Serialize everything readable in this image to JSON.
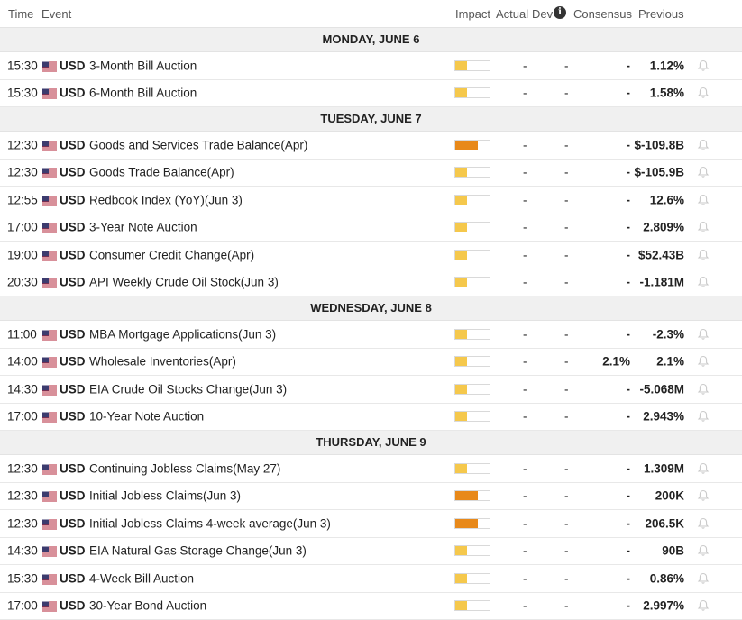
{
  "header": {
    "time": "Time",
    "event": "Event",
    "impact": "Impact",
    "actual": "Actual",
    "dev": "Dev",
    "info_icon": "i",
    "consensus": "Consensus",
    "previous": "Previous"
  },
  "colors": {
    "impact_low": "#f5c84c",
    "impact_high": "#e8891a"
  },
  "days": [
    {
      "label": "MONDAY, JUNE 6",
      "events": [
        {
          "time": "15:30",
          "currency": "USD",
          "name": "3-Month Bill Auction",
          "impact": "low",
          "actual": "-",
          "dev": "-",
          "consensus": "-",
          "previous": "1.12%"
        },
        {
          "time": "15:30",
          "currency": "USD",
          "name": "6-Month Bill Auction",
          "impact": "low",
          "actual": "-",
          "dev": "-",
          "consensus": "-",
          "previous": "1.58%"
        }
      ]
    },
    {
      "label": "TUESDAY, JUNE 7",
      "events": [
        {
          "time": "12:30",
          "currency": "USD",
          "name": "Goods and Services Trade Balance(Apr)",
          "impact": "high",
          "actual": "-",
          "dev": "-",
          "consensus": "-",
          "previous": "$-109.8B"
        },
        {
          "time": "12:30",
          "currency": "USD",
          "name": "Goods Trade Balance(Apr)",
          "impact": "low",
          "actual": "-",
          "dev": "-",
          "consensus": "-",
          "previous": "$-105.9B"
        },
        {
          "time": "12:55",
          "currency": "USD",
          "name": "Redbook Index (YoY)(Jun 3)",
          "impact": "low",
          "actual": "-",
          "dev": "-",
          "consensus": "-",
          "previous": "12.6%"
        },
        {
          "time": "17:00",
          "currency": "USD",
          "name": "3-Year Note Auction",
          "impact": "low",
          "actual": "-",
          "dev": "-",
          "consensus": "-",
          "previous": "2.809%"
        },
        {
          "time": "19:00",
          "currency": "USD",
          "name": "Consumer Credit Change(Apr)",
          "impact": "low",
          "actual": "-",
          "dev": "-",
          "consensus": "-",
          "previous": "$52.43B"
        },
        {
          "time": "20:30",
          "currency": "USD",
          "name": "API Weekly Crude Oil Stock(Jun 3)",
          "impact": "low",
          "actual": "-",
          "dev": "-",
          "consensus": "-",
          "previous": "-1.181M"
        }
      ]
    },
    {
      "label": "WEDNESDAY, JUNE 8",
      "events": [
        {
          "time": "11:00",
          "currency": "USD",
          "name": "MBA Mortgage Applications(Jun 3)",
          "impact": "low",
          "actual": "-",
          "dev": "-",
          "consensus": "-",
          "previous": "-2.3%"
        },
        {
          "time": "14:00",
          "currency": "USD",
          "name": "Wholesale Inventories(Apr)",
          "impact": "low",
          "actual": "-",
          "dev": "-",
          "consensus": "2.1%",
          "previous": "2.1%"
        },
        {
          "time": "14:30",
          "currency": "USD",
          "name": "EIA Crude Oil Stocks Change(Jun 3)",
          "impact": "low",
          "actual": "-",
          "dev": "-",
          "consensus": "-",
          "previous": "-5.068M"
        },
        {
          "time": "17:00",
          "currency": "USD",
          "name": "10-Year Note Auction",
          "impact": "low",
          "actual": "-",
          "dev": "-",
          "consensus": "-",
          "previous": "2.943%"
        }
      ]
    },
    {
      "label": "THURSDAY, JUNE 9",
      "events": [
        {
          "time": "12:30",
          "currency": "USD",
          "name": "Continuing Jobless Claims(May 27)",
          "impact": "low",
          "actual": "-",
          "dev": "-",
          "consensus": "-",
          "previous": "1.309M"
        },
        {
          "time": "12:30",
          "currency": "USD",
          "name": "Initial Jobless Claims(Jun 3)",
          "impact": "high",
          "actual": "-",
          "dev": "-",
          "consensus": "-",
          "previous": "200K"
        },
        {
          "time": "12:30",
          "currency": "USD",
          "name": "Initial Jobless Claims 4-week average(Jun 3)",
          "impact": "high",
          "actual": "-",
          "dev": "-",
          "consensus": "-",
          "previous": "206.5K"
        },
        {
          "time": "14:30",
          "currency": "USD",
          "name": "EIA Natural Gas Storage Change(Jun 3)",
          "impact": "low",
          "actual": "-",
          "dev": "-",
          "consensus": "-",
          "previous": "90B"
        },
        {
          "time": "15:30",
          "currency": "USD",
          "name": "4-Week Bill Auction",
          "impact": "low",
          "actual": "-",
          "dev": "-",
          "consensus": "-",
          "previous": "0.86%"
        },
        {
          "time": "17:00",
          "currency": "USD",
          "name": "30-Year Bond Auction",
          "impact": "low",
          "actual": "-",
          "dev": "-",
          "consensus": "-",
          "previous": "2.997%"
        }
      ]
    }
  ]
}
